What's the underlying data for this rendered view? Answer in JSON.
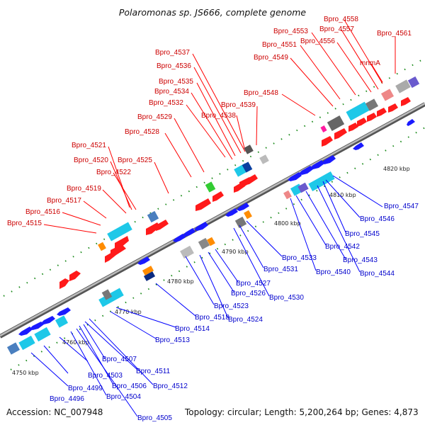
{
  "header": {
    "title": "Polaromonas sp. JS666, complete genome"
  },
  "footer": {
    "accession": "Accession: NC_007948",
    "summary": "Topology: circular; Length: 5,200,264 bp; Genes: 4,873"
  },
  "colors": {
    "forward": "#ff0000",
    "reverse": "#0000ff",
    "fwd_label": "#cc0000",
    "rev_label": "#0000cc",
    "backbone": "#888888"
  },
  "ticks": [
    "4750 kbp",
    "4760 kbp",
    "4770 kbp",
    "4780 kbp",
    "4790 kbp",
    "4800 kbp",
    "4810 kbp",
    "4820 kbp"
  ],
  "forward_labels": [
    "Bpro_4515",
    "Bpro_4516",
    "Bpro_4517",
    "Bpro_4519",
    "Bpro_4522",
    "Bpro_4520",
    "Bpro_4521",
    "Bpro_4525",
    "Bpro_4528",
    "Bpro_4529",
    "Bpro_4532",
    "Bpro_4534",
    "Bpro_4535",
    "Bpro_4536",
    "Bpro_4537",
    "Bpro_4538",
    "Bpro_4539",
    "Bpro_4548",
    "Bpro_4549",
    "Bpro_4551",
    "Bpro_4553",
    "Bpro_4556",
    "Bpro_4557",
    "Bpro_4558",
    "mnmA",
    "Bpro_4561"
  ],
  "reverse_labels": [
    "Bpro_4496",
    "Bpro_4499",
    "Bpro_4503",
    "Bpro_4504",
    "Bpro_4505",
    "Bpro_4506",
    "Bpro_4507",
    "Bpro_4511",
    "Bpro_4512",
    "Bpro_4513",
    "Bpro_4514",
    "Bpro_4518",
    "Bpro_4523",
    "Bpro_4524",
    "Bpro_4526",
    "Bpro_4527",
    "Bpro_4530",
    "Bpro_4531",
    "Bpro_4533",
    "Bpro_4540",
    "Bpro_4542",
    "Bpro_4543",
    "Bpro_4544",
    "Bpro_4545",
    "Bpro_4546",
    "Bpro_4547"
  ]
}
